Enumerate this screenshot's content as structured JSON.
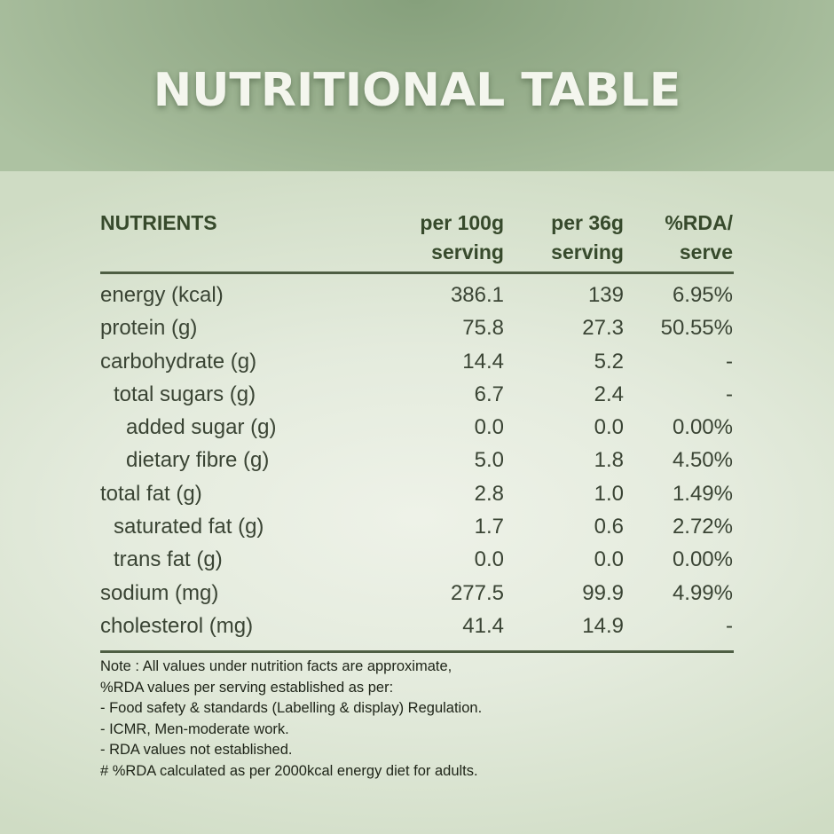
{
  "title": "NUTRITIONAL TABLE",
  "columns": {
    "nutrient": "NUTRIENTS",
    "per100_line1": "per 100g",
    "per100_line2": "serving",
    "per36_line1": "per 36g",
    "per36_line2": "serving",
    "rda_line1": "%RDA/",
    "rda_line2": "serve"
  },
  "rows": [
    {
      "name": "energy (kcal)",
      "per100": "386.1",
      "per36": "139",
      "rda": "6.95%",
      "level": 0
    },
    {
      "name": "protein (g)",
      "per100": "75.8",
      "per36": "27.3",
      "rda": "50.55%",
      "level": 0
    },
    {
      "name": "carbohydrate (g)",
      "per100": "14.4",
      "per36": "5.2",
      "rda": "-",
      "level": 0
    },
    {
      "name": "total sugars (g)",
      "per100": "6.7",
      "per36": "2.4",
      "rda": "-",
      "level": 1
    },
    {
      "name": "added sugar (g)",
      "per100": "0.0",
      "per36": "0.0",
      "rda": "0.00%",
      "level": 2
    },
    {
      "name": "dietary fibre (g)",
      "per100": "5.0",
      "per36": "1.8",
      "rda": "4.50%",
      "level": 2
    },
    {
      "name": "total fat (g)",
      "per100": "2.8",
      "per36": "1.0",
      "rda": "1.49%",
      "level": 0
    },
    {
      "name": "saturated fat (g)",
      "per100": "1.7",
      "per36": "0.6",
      "rda": "2.72%",
      "level": 1
    },
    {
      "name": "trans fat (g)",
      "per100": "0.0",
      "per36": "0.0",
      "rda": "0.00%",
      "level": 1
    },
    {
      "name": "sodium (mg)",
      "per100": "277.5",
      "per36": "99.9",
      "rda": "4.99%",
      "level": 0
    },
    {
      "name": "cholesterol (mg)",
      "per100": "41.4",
      "per36": "14.9",
      "rda": "-",
      "level": 0
    }
  ],
  "notes": [
    "Note : All values under nutrition facts are approximate,",
    "%RDA values per serving established as per:",
    "- Food safety & standards (Labelling & display) Regulation.",
    "- ICMR, Men-moderate work.",
    "- RDA values not established.",
    "# %RDA calculated as per 2000kcal energy diet for adults."
  ]
}
